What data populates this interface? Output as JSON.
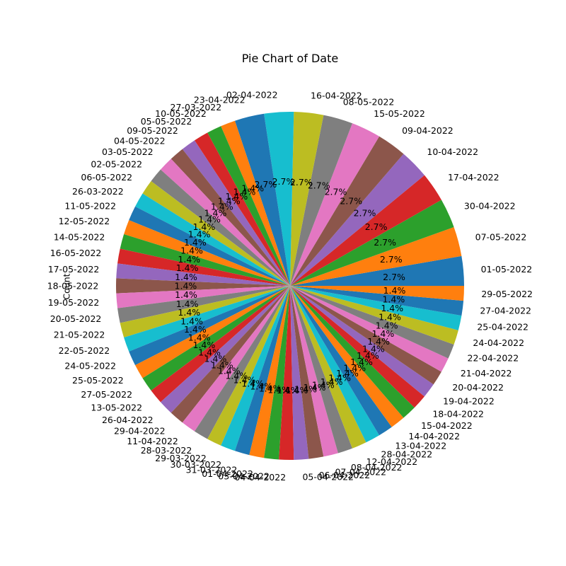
{
  "chart_data": {
    "type": "pie",
    "title": "Pie Chart of Date",
    "ylabel": "Count",
    "autopct_format": "{:.1f}%",
    "start_angle_deg": 0,
    "direction": "counterclockwise",
    "colors": [
      "#1f77b4",
      "#ff7f0e",
      "#2ca02c",
      "#d62728",
      "#9467bd",
      "#8c564b",
      "#e377c2",
      "#7f7f7f",
      "#bcbd22",
      "#17becf"
    ],
    "slices": [
      {
        "label": "01-05-2022",
        "value": 2
      },
      {
        "label": "07-05-2022",
        "value": 2
      },
      {
        "label": "30-04-2022",
        "value": 2
      },
      {
        "label": "17-04-2022",
        "value": 2
      },
      {
        "label": "10-04-2022",
        "value": 2
      },
      {
        "label": "09-04-2022",
        "value": 2
      },
      {
        "label": "15-05-2022",
        "value": 2
      },
      {
        "label": "08-05-2022",
        "value": 2
      },
      {
        "label": "16-04-2022",
        "value": 2
      },
      {
        "label": "02-04-2022",
        "value": 2
      },
      {
        "label": "23-04-2022",
        "value": 2
      },
      {
        "label": "27-03-2022",
        "value": 1
      },
      {
        "label": "10-05-2022",
        "value": 1
      },
      {
        "label": "05-05-2022",
        "value": 1
      },
      {
        "label": "09-05-2022",
        "value": 1
      },
      {
        "label": "04-05-2022",
        "value": 1
      },
      {
        "label": "03-05-2022",
        "value": 1
      },
      {
        "label": "02-05-2022",
        "value": 1
      },
      {
        "label": "06-05-2022",
        "value": 1
      },
      {
        "label": "26-03-2022",
        "value": 1
      },
      {
        "label": "11-05-2022",
        "value": 1
      },
      {
        "label": "12-05-2022",
        "value": 1
      },
      {
        "label": "14-05-2022",
        "value": 1
      },
      {
        "label": "16-05-2022",
        "value": 1
      },
      {
        "label": "17-05-2022",
        "value": 1
      },
      {
        "label": "18-05-2022",
        "value": 1
      },
      {
        "label": "19-05-2022",
        "value": 1
      },
      {
        "label": "20-05-2022",
        "value": 1
      },
      {
        "label": "21-05-2022",
        "value": 1
      },
      {
        "label": "22-05-2022",
        "value": 1
      },
      {
        "label": "24-05-2022",
        "value": 1
      },
      {
        "label": "25-05-2022",
        "value": 1
      },
      {
        "label": "27-05-2022",
        "value": 1
      },
      {
        "label": "13-05-2022",
        "value": 1
      },
      {
        "label": "26-04-2022",
        "value": 1
      },
      {
        "label": "29-04-2022",
        "value": 1
      },
      {
        "label": "11-04-2022",
        "value": 1
      },
      {
        "label": "28-03-2022",
        "value": 1
      },
      {
        "label": "29-03-2022",
        "value": 1
      },
      {
        "label": "30-03-2022",
        "value": 1
      },
      {
        "label": "31-03-2022",
        "value": 1
      },
      {
        "label": "01-04-2022",
        "value": 1
      },
      {
        "label": "03-04-2022",
        "value": 1
      },
      {
        "label": "04-04-2022",
        "value": 1
      },
      {
        "label": "05-04-2022",
        "value": 1
      },
      {
        "label": "06-04-2022",
        "value": 1
      },
      {
        "label": "07-04-2022",
        "value": 1
      },
      {
        "label": "08-04-2022",
        "value": 1
      },
      {
        "label": "12-04-2022",
        "value": 1
      },
      {
        "label": "28-04-2022",
        "value": 1
      },
      {
        "label": "13-04-2022",
        "value": 1
      },
      {
        "label": "14-04-2022",
        "value": 1
      },
      {
        "label": "15-04-2022",
        "value": 1
      },
      {
        "label": "18-04-2022",
        "value": 1
      },
      {
        "label": "19-04-2022",
        "value": 1
      },
      {
        "label": "20-04-2022",
        "value": 1
      },
      {
        "label": "21-04-2022",
        "value": 1
      },
      {
        "label": "22-04-2022",
        "value": 1
      },
      {
        "label": "24-04-2022",
        "value": 1
      },
      {
        "label": "25-04-2022",
        "value": 1
      },
      {
        "label": "27-04-2022",
        "value": 1
      },
      {
        "label": "29-05-2022",
        "value": 1
      }
    ]
  }
}
